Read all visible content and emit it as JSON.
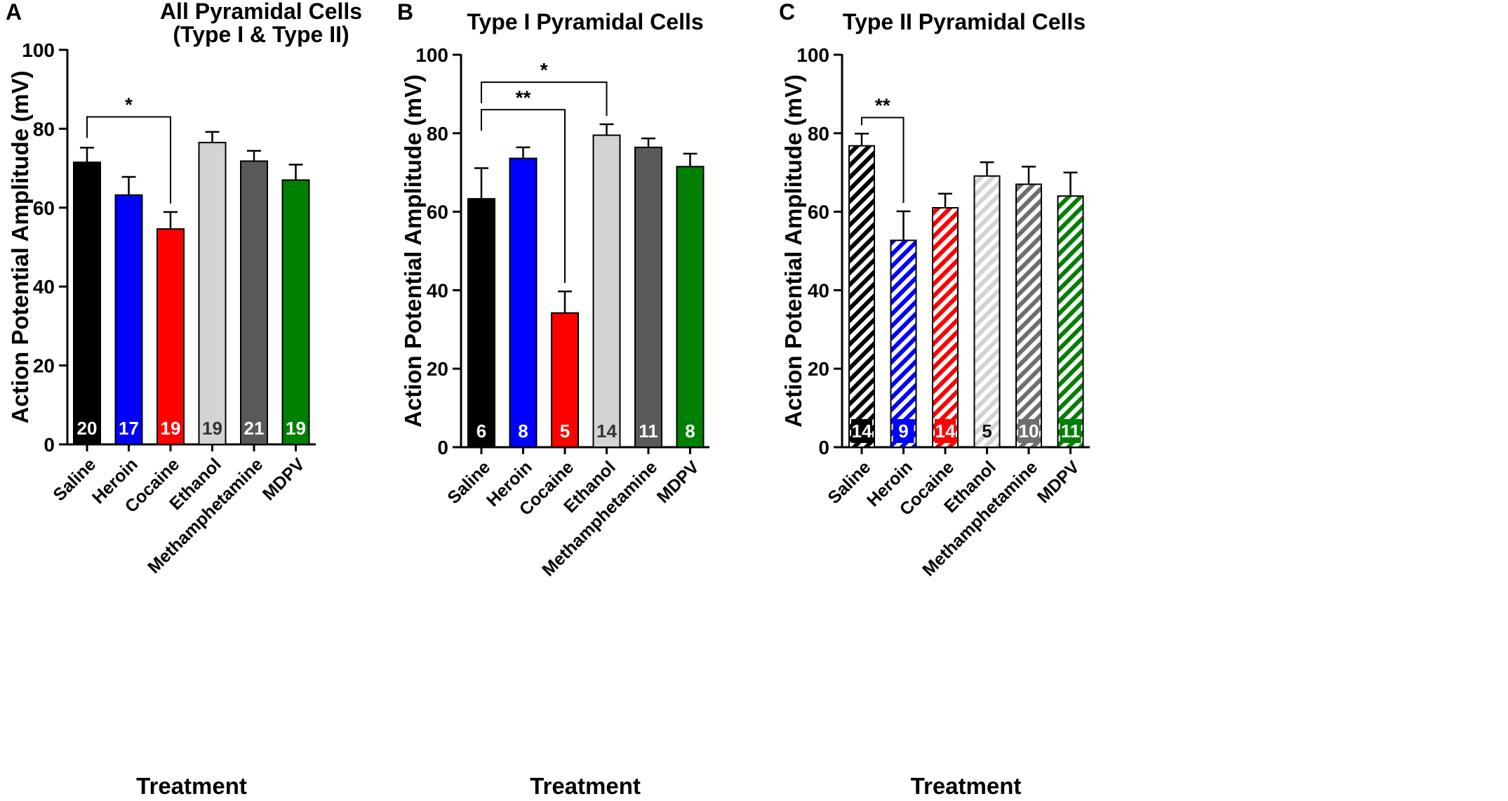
{
  "chart_data": [
    {
      "type": "bar",
      "panel": "A",
      "title_lines": [
        "All Pyramidal Cells",
        "(Type I & Type II)"
      ],
      "xlabel": "Treatment",
      "ylabel": "Action  Potential Amplitude  (mV)",
      "ylim": [
        0,
        100
      ],
      "yticks": [
        0,
        20,
        40,
        60,
        80,
        100
      ],
      "hatched": false,
      "categories": [
        "Saline",
        "Heroin",
        "Cocaine",
        "Ethanol",
        "Methamphetamine",
        "MDPV"
      ],
      "values": [
        71.5,
        63.2,
        54.6,
        76.5,
        71.8,
        67.0
      ],
      "errors": [
        3.7,
        4.6,
        4.3,
        2.7,
        2.6,
        3.9
      ],
      "n": [
        "20",
        "17",
        "19",
        "19",
        "21",
        "19"
      ],
      "colors": [
        "#000000",
        "#0000ff",
        "#ff0000",
        "#d3d3d3",
        "#595959",
        "#008000"
      ],
      "n_label_colors": [
        "#ffffff",
        "#ffffff",
        "#ffffff",
        "#333333",
        "#ffffff",
        "#ffffff"
      ],
      "significance": [
        {
          "from": 0,
          "to": 2,
          "y": 83,
          "label": "*"
        }
      ]
    },
    {
      "type": "bar",
      "panel": "B",
      "title_lines": [
        "Type I Pyramidal  Cells"
      ],
      "xlabel": "Treatment",
      "ylabel": "Action  Potential Amplitude  (mV)",
      "ylim": [
        0,
        100
      ],
      "yticks": [
        0,
        20,
        40,
        60,
        80,
        100
      ],
      "hatched": false,
      "categories": [
        "Saline",
        "Heroin",
        "Cocaine",
        "Ethanol",
        "Methamphetamine",
        "MDPV"
      ],
      "values": [
        63.3,
        73.6,
        34.2,
        79.5,
        76.4,
        71.5
      ],
      "errors": [
        7.8,
        2.8,
        5.5,
        2.8,
        2.3,
        3.3
      ],
      "n": [
        "6",
        "8",
        "5",
        "14",
        "11",
        "8"
      ],
      "colors": [
        "#000000",
        "#0000ff",
        "#ff0000",
        "#d3d3d3",
        "#595959",
        "#008000"
      ],
      "n_label_colors": [
        "#ffffff",
        "#ffffff",
        "#ffffff",
        "#333333",
        "#ffffff",
        "#ffffff"
      ],
      "significance": [
        {
          "from": 0,
          "to": 3,
          "y": 93,
          "label": "*"
        },
        {
          "from": 0,
          "to": 2,
          "y": 86,
          "label": "**"
        }
      ]
    },
    {
      "type": "bar",
      "panel": "C",
      "title_lines": [
        "Type  II Pyramidal  Cells"
      ],
      "xlabel": "Treatment",
      "ylabel": "Action  Potential Amplitude  (mV)",
      "ylim": [
        0,
        100
      ],
      "yticks": [
        0,
        20,
        40,
        60,
        80,
        100
      ],
      "hatched": true,
      "categories": [
        "Saline",
        "Heroin",
        "Cocaine",
        "Ethanol",
        "Methamphetamine",
        "MDPV"
      ],
      "values": [
        76.8,
        52.7,
        61.0,
        69.1,
        67.0,
        64.0
      ],
      "errors": [
        3.1,
        7.4,
        3.6,
        3.5,
        4.5,
        6.0
      ],
      "n": [
        "14",
        "9",
        "14",
        "5",
        "10",
        "11"
      ],
      "colors": [
        "#000000",
        "#0000ff",
        "#ff0000",
        "#d3d3d3",
        "#6e6e6e",
        "#008000"
      ],
      "n_label_colors": [
        "#ffffff",
        "#ffffff",
        "#ffffff",
        "#111111",
        "#ffffff",
        "#ffffff"
      ],
      "significance": [
        {
          "from": 0,
          "to": 1,
          "y": 84,
          "label": "**"
        }
      ]
    }
  ]
}
